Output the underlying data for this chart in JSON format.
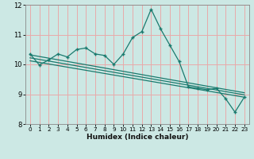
{
  "xlabel": "Humidex (Indice chaleur)",
  "ylabel": "",
  "background_color": "#cce8e4",
  "grid_color": "#e8aaaa",
  "line_color": "#1a7a6e",
  "xlim": [
    -0.5,
    23.5
  ],
  "ylim": [
    8,
    12
  ],
  "yticks": [
    8,
    9,
    10,
    11,
    12
  ],
  "xticks": [
    0,
    1,
    2,
    3,
    4,
    5,
    6,
    7,
    8,
    9,
    10,
    11,
    12,
    13,
    14,
    15,
    16,
    17,
    18,
    19,
    20,
    21,
    22,
    23
  ],
  "main_x": [
    0,
    1,
    2,
    3,
    4,
    5,
    6,
    7,
    8,
    9,
    10,
    11,
    12,
    13,
    14,
    15,
    16,
    17,
    18,
    19,
    20,
    21,
    22,
    23
  ],
  "main_y": [
    10.35,
    9.98,
    10.15,
    10.35,
    10.25,
    10.5,
    10.55,
    10.35,
    10.3,
    10.0,
    10.35,
    10.9,
    11.1,
    11.85,
    11.2,
    10.65,
    10.1,
    9.25,
    9.2,
    9.15,
    9.2,
    8.85,
    8.4,
    8.9
  ],
  "line1_x": [
    0,
    23
  ],
  "line1_y": [
    10.32,
    9.05
  ],
  "line2_x": [
    0,
    23
  ],
  "line2_y": [
    10.22,
    8.98
  ],
  "line3_x": [
    0,
    23
  ],
  "line3_y": [
    10.12,
    8.9
  ]
}
